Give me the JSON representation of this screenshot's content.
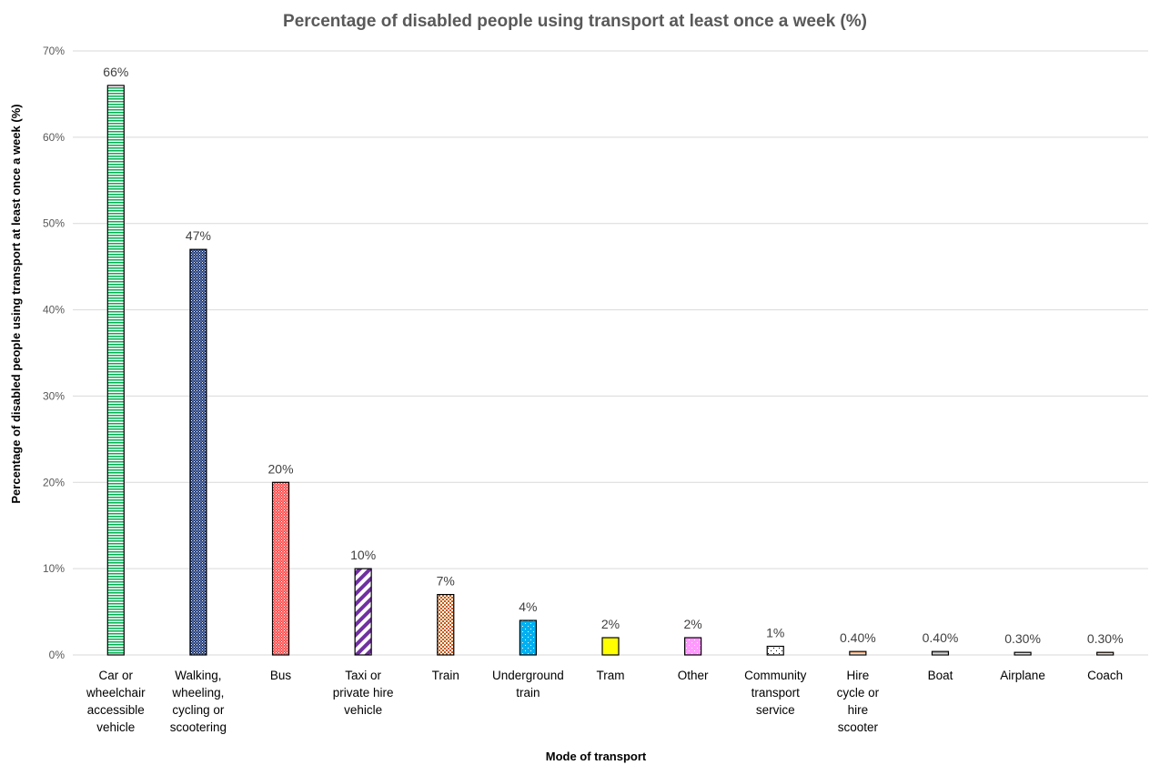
{
  "chart_data": {
    "type": "bar",
    "title": "Percentage of disabled people using transport at least once a week (%)",
    "xlabel": "Mode of transport",
    "ylabel": "Percentage of disabled people using transport at least once a week (%)",
    "ylim": [
      0,
      70
    ],
    "yticks": [
      "0%",
      "10%",
      "20%",
      "30%",
      "40%",
      "50%",
      "60%",
      "70%"
    ],
    "grid": true,
    "legend": "none",
    "categories": [
      [
        "Car or",
        "wheelchair",
        "accessible",
        "vehicle"
      ],
      [
        "Walking,",
        "wheeling,",
        "cycling or",
        "scootering"
      ],
      [
        "Bus"
      ],
      [
        "Taxi or",
        "private hire",
        "vehicle"
      ],
      [
        "Train"
      ],
      [
        "Underground",
        "train"
      ],
      [
        "Tram"
      ],
      [
        "Other"
      ],
      [
        "Community",
        "transport",
        "service"
      ],
      [
        "Hire",
        "cycle or",
        "hire",
        "scooter"
      ],
      [
        "Boat"
      ],
      [
        "Airplane"
      ],
      [
        "Coach"
      ]
    ],
    "values": [
      66,
      47,
      20,
      10,
      7,
      4,
      2,
      2,
      1,
      0.4,
      0.4,
      0.3,
      0.3
    ],
    "data_labels": [
      "66%",
      "47%",
      "20%",
      "10%",
      "7%",
      "4%",
      "2%",
      "2%",
      "1%",
      "0.40%",
      "0.40%",
      "0.30%",
      "0.30%"
    ],
    "bar_fills": [
      {
        "pattern": "hlines",
        "bg": "#ffffff",
        "fg": "#00b050"
      },
      {
        "pattern": "grid",
        "bg": "#1f3a7a",
        "fg": "#ffffff"
      },
      {
        "pattern": "grid",
        "bg": "#ff4d4d",
        "fg": "#ffffff"
      },
      {
        "pattern": "diag",
        "bg": "#ffffff",
        "fg": "#7030a0"
      },
      {
        "pattern": "check",
        "bg": "#ffffff",
        "fg": "#c55a11"
      },
      {
        "pattern": "dots",
        "bg": "#00b0f0",
        "fg": "#ffffff"
      },
      {
        "pattern": "solid",
        "bg": "#ffff00",
        "fg": "#ffff00"
      },
      {
        "pattern": "dots",
        "bg": "#ff99ff",
        "fg": "#ffffff"
      },
      {
        "pattern": "dots",
        "bg": "#ffffff",
        "fg": "#000000"
      },
      {
        "pattern": "hlines",
        "bg": "#ffffff",
        "fg": "#f4b183"
      },
      {
        "pattern": "hlines",
        "bg": "#ffffff",
        "fg": "#a5a5a5"
      },
      {
        "pattern": "hlines",
        "bg": "#ffffff",
        "fg": "#c9c9c9"
      },
      {
        "pattern": "hlines",
        "bg": "#ffffff",
        "fg": "#d9a98a"
      }
    ]
  }
}
